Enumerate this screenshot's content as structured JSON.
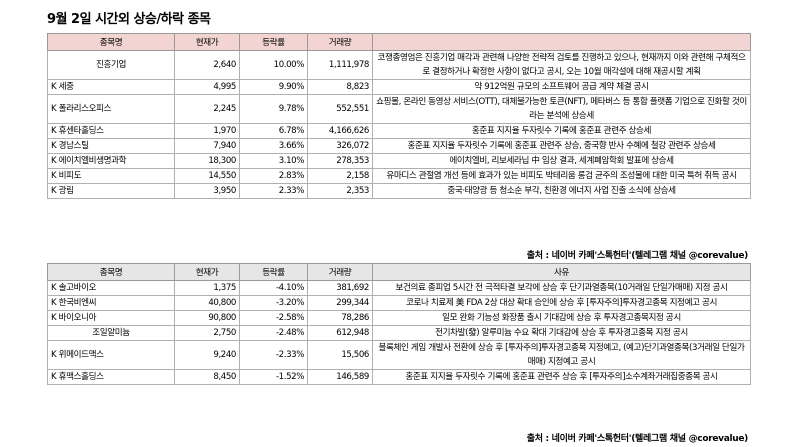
{
  "title": "9월 2일  시간외 상승/하락 종목",
  "rising": {
    "headers": [
      "종목명",
      "현재가",
      "등락률",
      "거래량",
      ""
    ],
    "rows": [
      {
        "name": "진흥기업",
        "price": "2,640",
        "change": "10.00%",
        "volume": "1,111,978",
        "reason": "코쟁종영엄은 진흥기업 매각과 관련해 나양한 전략적 검토를 진행하고 있으나, 현재까지 이와 관련해 구체적으로 결정하거나 확정한 사항이 없다고 공시, 오는 10월 매각설에 대해 재공시할 계획"
      },
      {
        "name": "K 세중",
        "price": "4,995",
        "change": "9.90%",
        "volume": "8,823",
        "reason": "약 912억원 규모의 소프트웨어 공급 계약 체결 공시"
      },
      {
        "name": "K 폴라리스오피스",
        "price": "2,245",
        "price2": "",
        "change": "9.78%",
        "volume": "552,551",
        "reason": "쇼핑몰, 온라인 동영상 서비스(OTT), 대체불가능한 토큰(NFT), 메타버스 등 통합 플랫폼 기업으로 진화할 것이라는 분석에 상승세"
      },
      {
        "name": "K 휴센타홀딩스",
        "price": "1,970",
        "change": "6.78%",
        "volume": "4,166,626",
        "reason": "홍준표 지지율 두자릿수 기록에 홍준표 관련주 상승세"
      },
      {
        "name": "K 경남스틸",
        "price": "7,940",
        "change": "3.66%",
        "volume": "326,072",
        "reason": "홍준표 지지율 두자릿수 기록에 홍준표 관련주 상승, 중국향 반사 수혜에 철강 관련주 상승세"
      },
      {
        "name": "K 에이치엘비생명과학",
        "price": "18,300",
        "change": "3.10%",
        "volume": "278,353",
        "reason": "에이치엘비, 리보세라닙 中 임상 결과, 세계폐암학회 발표에 상승세"
      },
      {
        "name": "K 비피도",
        "price": "14,550",
        "change": "2.83%",
        "volume": "2,158",
        "reason": "유마디스 관절염 개선 등에 효과가 있는 비피도 박테리움 롱검 균주의 조성물에 대한 미국 특허 취득 공시"
      },
      {
        "name": "K 광림",
        "price": "3,950",
        "change": "2.33%",
        "volume": "2,353",
        "reason": "중국·태양광 등 청소순 부각, 친환경 에너지 사업 진출 소식에 상승세"
      }
    ]
  },
  "falling": {
    "headers": [
      "종목명",
      "현재가",
      "등락률",
      "거래량",
      "사유"
    ],
    "rows": [
      {
        "name": "K 솔고바이오",
        "price": "1,375",
        "change": "-4.10%",
        "volume": "381,692",
        "reason": "보건의료 종피업 5시간 전 극적타결 보각에 상승 후 단기과열종목(10거래일 단일가매매) 지정 공시"
      },
      {
        "name": "K 한국비엔씨",
        "price": "40,800",
        "change": "-3.20%",
        "volume": "299,344",
        "reason": "코로나 치료제 美 FDA 2상 대상 확대 승인에 상승 후 [투자주의]투자경고종목 지정예고 공시"
      },
      {
        "name": "K 바이오니아",
        "price": "90,800",
        "change": "-2.58%",
        "volume": "78,286",
        "reason": "일모 완화 기능성 화장품 출시 기대감에 상승 후 투자경고종목지정 공시"
      },
      {
        "name": "조일알미늄",
        "price": "2,750",
        "change": "-2.48%",
        "volume": "612,948",
        "reason": "전기차발(發) 알루미늄 수요 확대 기대감에 상승 후 투자경고종목 지정 공시"
      },
      {
        "name": "K 위메이드맥스",
        "price": "9,240",
        "change": "-2.33%",
        "volume": "15,506",
        "reason": "블록체인 게임 개발사 전환에 상승 후 [투자주의]투자경고종목 지정예고, (예고)단기과열종목(3거래일 단일가매매) 지정예고 공시"
      },
      {
        "name": "K 휴맥스홀딩스",
        "price": "8,450",
        "change": "-1.52%",
        "volume": "146,589",
        "reason": "홍준표 지지율 두자릿수 기록에 홍준표 관련주 상승 후 [투자주의]소수계좌거래집중종목 공시"
      }
    ]
  },
  "source": "출처 : 네이버 카페'스톡헌터'(텔레그램 채널 @corevalue)"
}
